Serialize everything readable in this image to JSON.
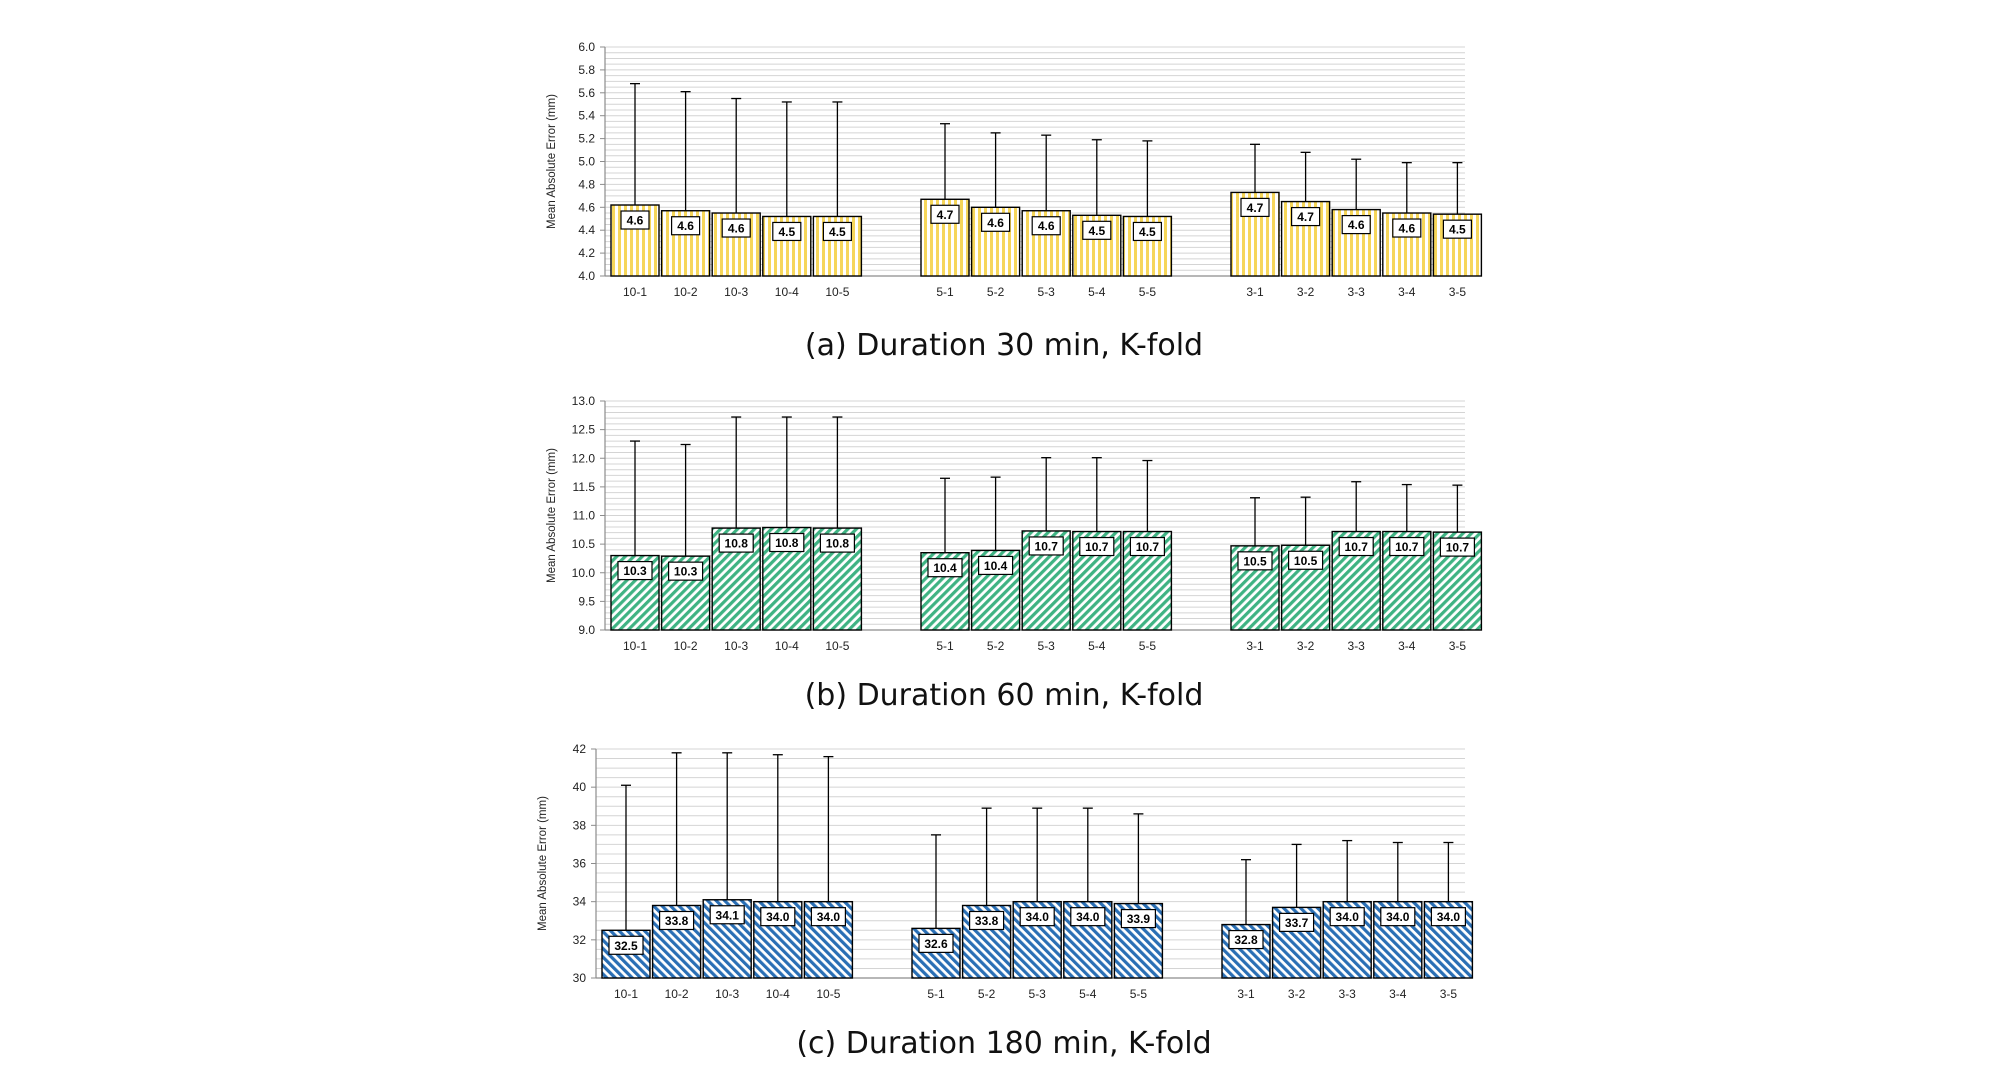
{
  "chart_data": [
    {
      "type": "bar",
      "caption": "(a) Duration 30 min, K-fold",
      "ylabel": "Mean Absolute Error (mm)",
      "ylim": [
        4.0,
        6.0
      ],
      "ytick_step": 0.2,
      "ytick_decimals": 1,
      "minor_grid_step": 0.05,
      "value_decimals": 1,
      "categories": [
        "10-1",
        "10-2",
        "10-3",
        "10-4",
        "10-5",
        "5-1",
        "5-2",
        "5-3",
        "5-4",
        "5-5",
        "3-1",
        "3-2",
        "3-3",
        "3-4",
        "3-5"
      ],
      "groups": [
        5,
        5,
        5
      ],
      "values": [
        4.62,
        4.57,
        4.55,
        4.52,
        4.52,
        4.67,
        4.6,
        4.57,
        4.53,
        4.52,
        4.73,
        4.65,
        4.58,
        4.55,
        4.54
      ],
      "labels": [
        "4.6",
        "4.6",
        "4.6",
        "4.5",
        "4.5",
        "4.7",
        "4.6",
        "4.6",
        "4.5",
        "4.5",
        "4.7",
        "4.7",
        "4.6",
        "4.6",
        "4.5"
      ],
      "error_upper": [
        5.68,
        5.61,
        5.55,
        5.52,
        5.52,
        5.33,
        5.25,
        5.23,
        5.19,
        5.18,
        5.15,
        5.08,
        5.02,
        4.99,
        4.99
      ],
      "bar_fill": "#f6d65a",
      "bar_pattern": "vertical"
    },
    {
      "type": "bar",
      "caption": "(b) Duration 60 min, K-fold",
      "ylabel": "Mean Absolute Error (mm)",
      "ylim": [
        9.0,
        13.0
      ],
      "ytick_step": 0.5,
      "ytick_decimals": 1,
      "minor_grid_step": 0.1,
      "value_decimals": 1,
      "categories": [
        "10-1",
        "10-2",
        "10-3",
        "10-4",
        "10-5",
        "5-1",
        "5-2",
        "5-3",
        "5-4",
        "5-5",
        "3-1",
        "3-2",
        "3-3",
        "3-4",
        "3-5"
      ],
      "groups": [
        5,
        5,
        5
      ],
      "values": [
        10.3,
        10.29,
        10.78,
        10.79,
        10.78,
        10.35,
        10.39,
        10.73,
        10.72,
        10.72,
        10.47,
        10.48,
        10.72,
        10.72,
        10.71
      ],
      "labels": [
        "10.3",
        "10.3",
        "10.8",
        "10.8",
        "10.8",
        "10.4",
        "10.4",
        "10.7",
        "10.7",
        "10.7",
        "10.5",
        "10.5",
        "10.7",
        "10.7",
        "10.7"
      ],
      "error_upper": [
        12.3,
        12.24,
        12.72,
        12.72,
        12.72,
        11.65,
        11.67,
        12.01,
        12.01,
        11.96,
        11.31,
        11.32,
        11.59,
        11.54,
        11.53
      ],
      "bar_fill": "#3fb383",
      "bar_pattern": "diagonal-right"
    },
    {
      "type": "bar",
      "caption": "(c) Duration 180 min, K-fold",
      "ylabel": "Mean Absolute Error (mm)",
      "ylim": [
        30,
        42
      ],
      "ytick_step": 2,
      "ytick_decimals": 0,
      "minor_grid_step": 0.5,
      "value_decimals": 1,
      "categories": [
        "10-1",
        "10-2",
        "10-3",
        "10-4",
        "10-5",
        "5-1",
        "5-2",
        "5-3",
        "5-4",
        "5-5",
        "3-1",
        "3-2",
        "3-3",
        "3-4",
        "3-5"
      ],
      "groups": [
        5,
        5,
        5
      ],
      "values": [
        32.5,
        33.8,
        34.1,
        34.0,
        34.0,
        32.6,
        33.8,
        34.0,
        34.0,
        33.9,
        32.8,
        33.7,
        34.0,
        34.0,
        34.0
      ],
      "labels": [
        "32.5",
        "33.8",
        "34.1",
        "34.0",
        "34.0",
        "32.6",
        "33.8",
        "34.0",
        "34.0",
        "33.9",
        "32.8",
        "33.7",
        "34.0",
        "34.0",
        "34.0"
      ],
      "error_upper": [
        40.1,
        41.8,
        41.8,
        41.7,
        41.6,
        37.5,
        38.9,
        38.9,
        38.9,
        38.6,
        36.2,
        37.0,
        37.2,
        37.1,
        37.1
      ],
      "bar_fill": "#2a6fb5",
      "bar_pattern": "diagonal-left"
    }
  ]
}
